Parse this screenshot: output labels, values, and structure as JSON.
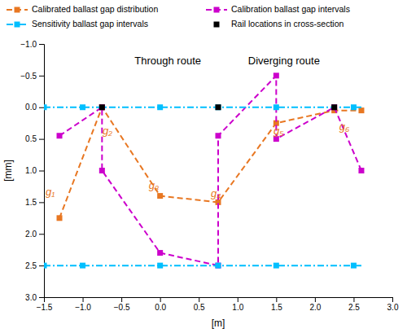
{
  "chart_data": {
    "type": "line",
    "xlabel": "[m]",
    "ylabel": "[mm]",
    "xlim": [
      -1.5,
      3.0
    ],
    "ylim": [
      3.0,
      -1.0
    ],
    "xticks": [
      {
        "value": -1.5,
        "label": "−1.5"
      },
      {
        "value": -1,
        "label": "−1.0"
      },
      {
        "value": -0.5,
        "label": "−0.5"
      },
      {
        "value": 0,
        "label": "0.0"
      },
      0.5,
      {
        "value": 1,
        "label": "1.0"
      },
      1.5,
      {
        "value": 2,
        "label": "2.0"
      },
      2.5,
      {
        "value": 3,
        "label": "3.0"
      }
    ],
    "yticks": [
      {
        "value": -1,
        "label": "−1.0"
      },
      {
        "value": -0.5,
        "label": "−0.5"
      },
      {
        "value": 0,
        "label": "0.0"
      },
      0.5,
      {
        "value": 1,
        "label": "1.0"
      },
      1.5,
      {
        "value": 2,
        "label": "2.0"
      },
      2.5,
      {
        "value": 3,
        "label": "3.0"
      }
    ],
    "grid": false,
    "legend": "top",
    "series": [
      {
        "name": "Calibrated ballast gap distribution",
        "color": "#E87722",
        "type": "line",
        "line_style": "dashed",
        "marker": "square",
        "x": [
          -1.3,
          -0.75,
          0.0,
          0.75,
          1.5,
          2.25,
          2.6
        ],
        "values": [
          1.75,
          0.0,
          1.4,
          1.5,
          0.25,
          0.05,
          0.05
        ]
      },
      {
        "name": "Calibration ballast gap intervals",
        "color": "#CC00CC",
        "type": "line",
        "line_style": "dashed",
        "marker": "square",
        "x": [
          -1.3,
          -0.75,
          -0.75,
          0.0,
          0.75,
          0.75,
          1.5,
          1.5,
          2.25,
          2.6
        ],
        "values": [
          0.45,
          0.0,
          1.0,
          2.3,
          2.5,
          0.45,
          -0.5,
          0.5,
          0.0,
          1.0
        ]
      },
      {
        "name": "Sensitivity ballast gap intervals",
        "color": "#00BFFF",
        "type": "line",
        "line_style": "dashdot",
        "marker": "none",
        "x": [
          -1.5,
          2.6
        ],
        "values": [
          0.0,
          0.0
        ]
      },
      {
        "color": "#00BFFF",
        "type": "line",
        "line_style": "dashdot",
        "marker": "none",
        "x": [
          -1.5,
          2.6
        ],
        "values": [
          2.5,
          2.5
        ]
      },
      {
        "color": "#00BFFF",
        "type": "scatter",
        "marker": "square",
        "x": [
          -1.5,
          -1.0,
          0.0,
          0.75,
          1.5,
          2.5
        ],
        "values": [
          0.0,
          0.0,
          0.0,
          0.0,
          0.0,
          0.0
        ]
      },
      {
        "color": "#00BFFF",
        "type": "scatter",
        "marker": "square",
        "x": [
          -1.5,
          -1.0,
          0.0,
          0.75,
          1.5,
          2.5
        ],
        "values": [
          2.5,
          2.5,
          2.5,
          2.5,
          2.5,
          2.5
        ]
      },
      {
        "name": "Rail locations in cross-section",
        "color": "#000000",
        "type": "scatter",
        "marker": "square",
        "x": [
          -0.75,
          0.75,
          2.25
        ],
        "values": [
          0.0,
          0.0,
          0.0
        ]
      }
    ],
    "annotations": [
      {
        "text": "g₁",
        "x": -1.42,
        "y": 1.35,
        "color": "#E87722"
      },
      {
        "text": "g₂",
        "x": -0.68,
        "y": 0.38,
        "color": "#E87722"
      },
      {
        "text": "g₃",
        "x": -0.08,
        "y": 1.25,
        "color": "#E87722"
      },
      {
        "text": "g₄",
        "x": 0.72,
        "y": 1.38,
        "color": "#E87722"
      },
      {
        "text": "g₅",
        "x": 1.53,
        "y": 0.38,
        "color": "#E87722"
      },
      {
        "text": "g₆",
        "x": 2.38,
        "y": 0.32,
        "color": "#E87722"
      },
      {
        "text": "Through route",
        "x": 0.1,
        "y": -0.72
      },
      {
        "text": "Diverging route",
        "x": 1.6,
        "y": -0.72
      }
    ]
  }
}
